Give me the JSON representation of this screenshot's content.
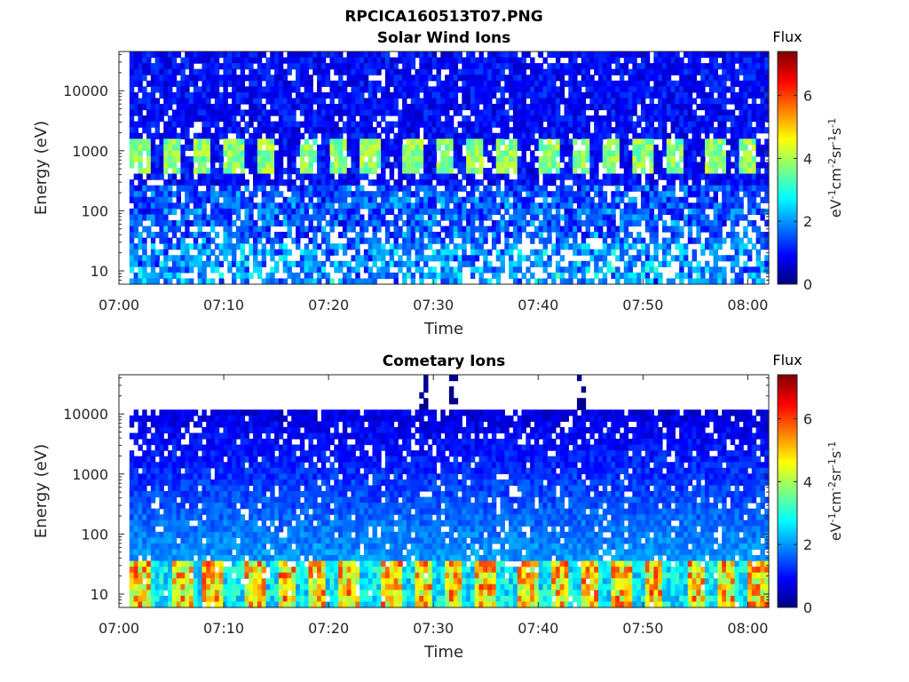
{
  "figure_title": "RPCICA160513T07.PNG",
  "chart_data": [
    {
      "type": "heatmap",
      "title": "Solar Wind Ions",
      "xlabel": "Time",
      "ylabel": "Energy (eV)",
      "yscale": "log",
      "ylim": [
        6,
        45000
      ],
      "xlim": [
        "07:00",
        "08:02"
      ],
      "x_ticks": [
        "07:00",
        "07:10",
        "07:20",
        "07:30",
        "07:40",
        "07:50",
        "08:00"
      ],
      "y_ticks": [
        {
          "value": 10,
          "label": "10"
        },
        {
          "value": 100,
          "label": "100"
        },
        {
          "value": 1000,
          "label": "1000"
        },
        {
          "value": 10000,
          "label": "10000"
        }
      ],
      "data_start": "07:01",
      "colorbar": {
        "title": "Flux",
        "label": "eV-1cm-2sr-1s-1",
        "range": [
          0,
          7.4
        ],
        "ticks": [
          "0",
          "2",
          "4",
          "6"
        ],
        "colormap": "jet"
      },
      "features": [
        {
          "description": "periodic solar wind peaks",
          "energy_center_eV": 800,
          "peak_flux_log": 4.0,
          "times": [
            "07:02",
            "07:05",
            "07:08",
            "07:11",
            "07:14",
            "07:18",
            "07:21",
            "07:24",
            "07:28",
            "07:31",
            "07:34",
            "07:37",
            "07:41",
            "07:44",
            "07:47",
            "07:50",
            "07:53",
            "07:57",
            "08:00"
          ]
        }
      ]
    },
    {
      "type": "heatmap",
      "title": "Cometary Ions",
      "xlabel": "Time",
      "ylabel": "Energy (eV)",
      "yscale": "log",
      "ylim": [
        6,
        45000
      ],
      "xlim": [
        "07:00",
        "08:02"
      ],
      "x_ticks": [
        "07:00",
        "07:10",
        "07:20",
        "07:30",
        "07:40",
        "07:50",
        "08:00"
      ],
      "y_ticks": [
        {
          "value": 10,
          "label": "10"
        },
        {
          "value": 100,
          "label": "100"
        },
        {
          "value": 1000,
          "label": "1000"
        },
        {
          "value": 10000,
          "label": "10000"
        }
      ],
      "data_start": "07:01",
      "colorbar": {
        "title": "Flux",
        "label": "eV-1cm-2sr-1s-1",
        "range": [
          0,
          7.4
        ],
        "ticks": [
          "0",
          "2",
          "4",
          "6"
        ],
        "colormap": "jet"
      },
      "features": [
        {
          "description": "periodic low-energy cometary peaks",
          "energy_center_eV": 22,
          "peak_flux_log": 6.0,
          "times": [
            "07:02",
            "07:06",
            "07:09",
            "07:13",
            "07:16",
            "07:19",
            "07:22",
            "07:26",
            "07:29",
            "07:32",
            "07:35",
            "07:39",
            "07:42",
            "07:45",
            "07:48",
            "07:51",
            "07:55",
            "07:58",
            "08:01"
          ]
        },
        {
          "description": "isolated high-energy spikes",
          "energy_center_eV": 25000,
          "times": [
            "07:29",
            "07:32",
            "07:44"
          ]
        }
      ]
    }
  ]
}
